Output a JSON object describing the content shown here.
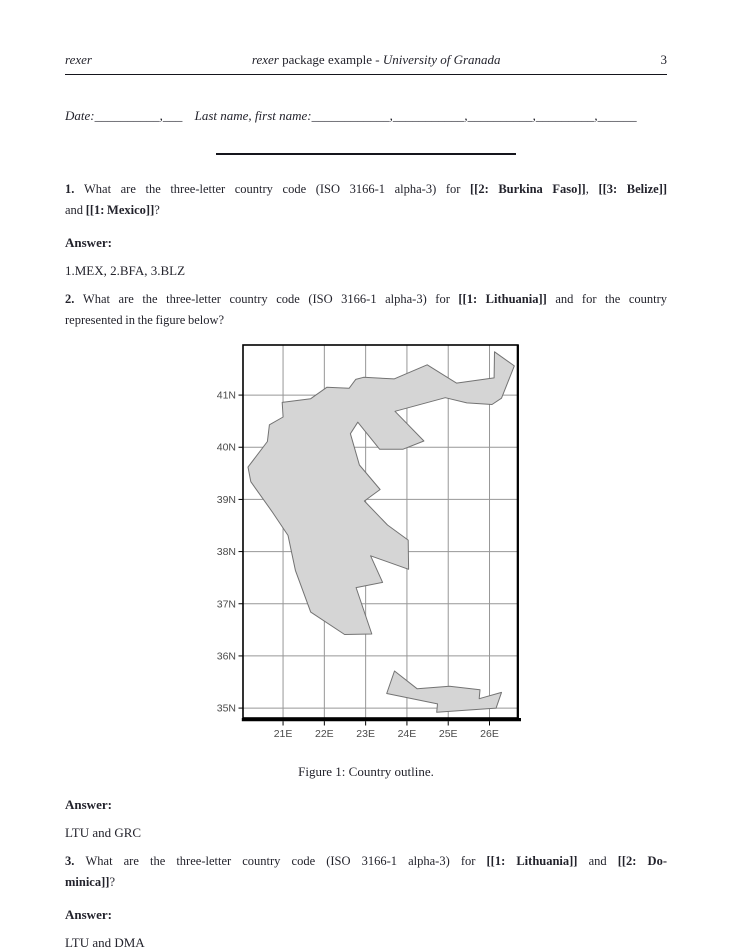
{
  "page": {
    "background": "#ffffff",
    "ink": "#23232c"
  },
  "header": {
    "brand": "rexer",
    "title_parts": [
      {
        "t": "rexer",
        "italic": true
      },
      {
        "t": " package example - ",
        "italic": false
      },
      {
        "t": "University of Granada",
        "italic": true
      }
    ],
    "page_number": "3"
  },
  "identity_row": {
    "date_label": "Date:",
    "date_blank": "__________,___",
    "name_label": "Last name, first name:",
    "name_blank": "____________,___________,__________,_________,______"
  },
  "questions": [
    {
      "id": "1",
      "lines": [
        {
          "segments": [
            {
              "t": "1. ",
              "b": true
            },
            {
              "t": "What are the three-letter country code (ISO 3166-1 alpha-3) for ",
              "b": false
            },
            {
              "t": "[[2: Burkina Faso]]",
              "b": true
            },
            {
              "t": ", ",
              "b": false
            },
            {
              "t": "[[3: Belize]]",
              "b": true
            }
          ]
        },
        {
          "segments": [
            {
              "t": "and ",
              "b": false
            },
            {
              "t": "[[1: Mexico]]",
              "b": true
            },
            {
              "t": "?",
              "b": false
            }
          ]
        }
      ],
      "answer_label": "Answer:",
      "answer": "1.MEX, 2.BFA, 3.BLZ"
    },
    {
      "id": "2",
      "lines": [
        {
          "segments": [
            {
              "t": "2. ",
              "b": true
            },
            {
              "t": "What are the three-letter country code (ISO 3166-1 alpha-3) for ",
              "b": false
            },
            {
              "t": "[[1: Lithuania]]",
              "b": true
            },
            {
              "t": " and for the country",
              "b": false
            }
          ]
        },
        {
          "segments": [
            {
              "t": "represented in the figure below?",
              "b": false
            }
          ]
        }
      ],
      "answer_label": "Answer:",
      "answer": "LTU and GRC"
    },
    {
      "id": "3",
      "lines": [
        {
          "segments": [
            {
              "t": "3. ",
              "b": true
            },
            {
              "t": "What are the three-letter country code (ISO 3166-1 alpha-3) for ",
              "b": false
            },
            {
              "t": "[[1: Lithuania]]",
              "b": true
            },
            {
              "t": " and ",
              "b": false
            },
            {
              "t": "[[2: Do-",
              "b": true
            }
          ]
        },
        {
          "segments": [
            {
              "t": "minica]]",
              "b": true
            },
            {
              "t": "?",
              "b": false
            }
          ]
        }
      ],
      "answer_label": "Answer:",
      "answer": "LTU and DMA"
    }
  ],
  "figure": {
    "caption": "Figure 1: Country outline."
  },
  "chart_data": {
    "type": "map-outline",
    "description": "Outline map of Greece (mainland and Crete) on a latitude/longitude grid",
    "x_ticks": [
      {
        "v": 21,
        "label": "21E"
      },
      {
        "v": 22,
        "label": "22E"
      },
      {
        "v": 23,
        "label": "23E"
      },
      {
        "v": 24,
        "label": "24E"
      },
      {
        "v": 25,
        "label": "25E"
      },
      {
        "v": 26,
        "label": "26E"
      }
    ],
    "y_ticks": [
      {
        "v": 41,
        "label": "41N"
      },
      {
        "v": 40,
        "label": "40N"
      },
      {
        "v": 39,
        "label": "39N"
      },
      {
        "v": 38,
        "label": "38N"
      },
      {
        "v": 37,
        "label": "37N"
      },
      {
        "v": 36,
        "label": "36N"
      },
      {
        "v": 35,
        "label": "35N"
      }
    ],
    "lon_range": [
      20.03,
      26.69
    ],
    "lat_range": [
      34.81,
      41.96
    ],
    "grid": true,
    "colors": {
      "fill": "#d5d5d5",
      "outline": "#737373",
      "grid": "#979797",
      "box": "#000000",
      "tick_label": "#4a4a4a"
    },
    "regions": [
      {
        "name": "mainland",
        "coords": [
          [
            26.6,
            41.56
          ],
          [
            26.29,
            40.94
          ],
          [
            26.06,
            40.82
          ],
          [
            25.45,
            40.85
          ],
          [
            24.93,
            40.95
          ],
          [
            23.71,
            40.69
          ],
          [
            24.41,
            40.12
          ],
          [
            23.9,
            39.96
          ],
          [
            23.34,
            39.96
          ],
          [
            22.81,
            40.48
          ],
          [
            22.63,
            40.26
          ],
          [
            22.85,
            39.66
          ],
          [
            23.35,
            39.19
          ],
          [
            22.97,
            38.97
          ],
          [
            23.53,
            38.51
          ],
          [
            24.03,
            38.22
          ],
          [
            24.04,
            37.66
          ],
          [
            23.12,
            37.92
          ],
          [
            23.41,
            37.41
          ],
          [
            22.77,
            37.31
          ],
          [
            23.15,
            36.42
          ],
          [
            22.49,
            36.41
          ],
          [
            21.67,
            36.84
          ],
          [
            21.3,
            37.64
          ],
          [
            21.12,
            38.31
          ],
          [
            20.73,
            38.77
          ],
          [
            20.22,
            39.34
          ],
          [
            20.15,
            39.62
          ],
          [
            20.62,
            40.11
          ],
          [
            20.67,
            40.43
          ],
          [
            21.0,
            40.58
          ],
          [
            20.98,
            40.86
          ],
          [
            21.67,
            40.93
          ],
          [
            22.06,
            41.15
          ],
          [
            22.6,
            41.13
          ],
          [
            22.76,
            41.3
          ],
          [
            22.95,
            41.34
          ],
          [
            23.69,
            41.31
          ],
          [
            24.49,
            41.58
          ],
          [
            25.2,
            41.23
          ],
          [
            26.11,
            41.33
          ],
          [
            26.12,
            41.83
          ]
        ]
      },
      {
        "name": "island",
        "coords": [
          [
            23.51,
            35.28
          ],
          [
            23.7,
            35.71
          ],
          [
            24.25,
            35.37
          ],
          [
            25.03,
            35.42
          ],
          [
            25.77,
            35.35
          ],
          [
            25.75,
            35.18
          ],
          [
            26.29,
            35.3
          ],
          [
            26.16,
            35.0
          ],
          [
            24.72,
            34.92
          ],
          [
            24.74,
            35.08
          ]
        ]
      }
    ]
  }
}
